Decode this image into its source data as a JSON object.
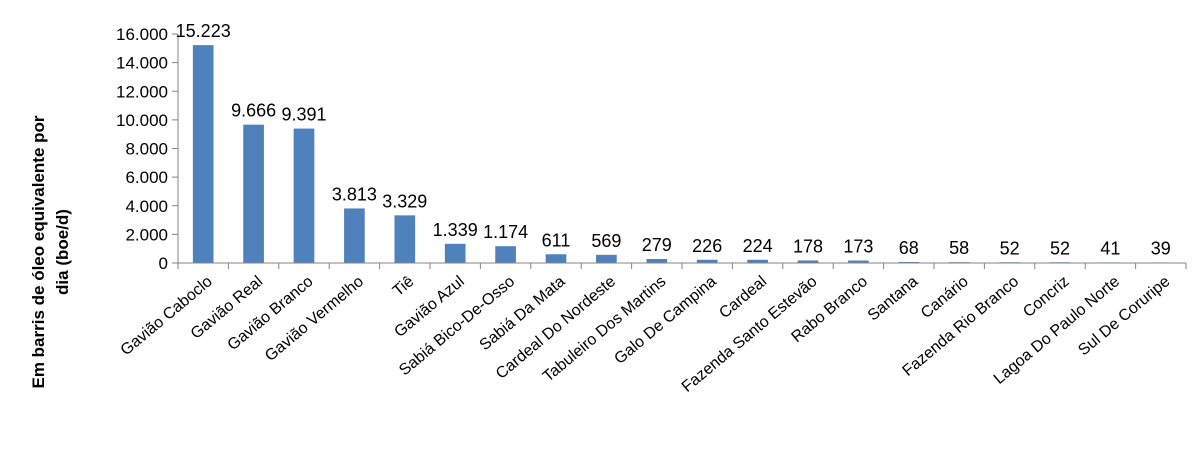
{
  "chart_data": {
    "type": "bar",
    "title": "",
    "xlabel": "",
    "ylabel_lines": [
      "Em barris de óleo equivalente por",
      "dia (boe/d)"
    ],
    "ylim": [
      0,
      16000
    ],
    "yticks": [
      0,
      2000,
      4000,
      6000,
      8000,
      10000,
      12000,
      14000,
      16000
    ],
    "ytick_labels": [
      "0",
      "2.000",
      "4.000",
      "6.000",
      "8.000",
      "10.000",
      "12.000",
      "14.000",
      "16.000"
    ],
    "grid": false,
    "bar_color": "#4F81BD",
    "categories": [
      "Gavião Caboclo",
      "Gavião Real",
      "Gavião Branco",
      "Gavião Vermelho",
      "Tiê",
      "Gavião Azul",
      "Sabiá Bico-De-Osso",
      "Sabiá Da Mata",
      "Cardeal Do Nordeste",
      "Tabuleiro Dos Martins",
      "Galo De Campina",
      "Cardeal",
      "Fazenda Santo Estevão",
      "Rabo Branco",
      "Santana",
      "Canário",
      "Fazenda Rio Branco",
      "Concriz",
      "Lagoa Do Paulo Norte",
      "Sul De Coruripe"
    ],
    "values": [
      15223,
      9666,
      9391,
      3813,
      3329,
      1339,
      1174,
      611,
      569,
      279,
      226,
      224,
      178,
      173,
      68,
      58,
      52,
      52,
      41,
      39
    ],
    "value_labels": [
      "15.223",
      "9.666",
      "9.391",
      "3.813",
      "3.329",
      "1.339",
      "1.174",
      "611",
      "569",
      "279",
      "226",
      "224",
      "178",
      "173",
      "68",
      "58",
      "52",
      "52",
      "41",
      "39"
    ]
  }
}
